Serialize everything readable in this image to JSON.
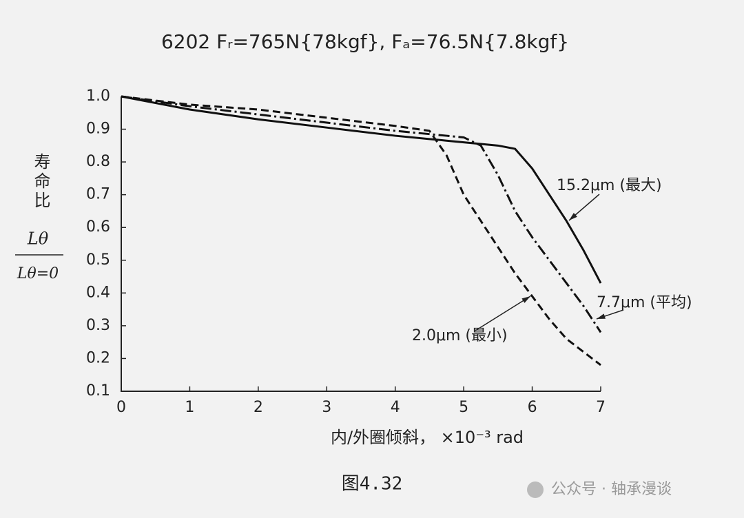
{
  "chart_data": {
    "type": "line",
    "title": "6202  Fᵣ=765N{78kgf}, Fₐ=76.5N{7.8kgf}",
    "y_label": "寿命比",
    "y_label_numerator": "Lθ",
    "y_label_denominator": "Lθ=0",
    "x_label": "内/外圈倾斜， ×10⁻³ rad",
    "caption": "图4.32",
    "watermark": "公众号 · 轴承漫谈",
    "x": [
      0,
      1,
      2,
      3,
      4,
      4.5,
      4.75,
      5,
      5.25,
      5.5,
      5.75,
      6,
      6.25,
      6.5,
      6.75,
      7
    ],
    "series": [
      {
        "name": "15.2μm (最大)",
        "color": "#111111",
        "dash": "solid",
        "values": [
          1.0,
          0.96,
          0.93,
          0.905,
          0.88,
          0.87,
          0.865,
          0.86,
          0.855,
          0.85,
          0.84,
          0.78,
          0.7,
          0.62,
          0.53,
          0.43
        ]
      },
      {
        "name": "7.7μm (平均)",
        "color": "#111111",
        "dash": "dashdot",
        "values": [
          1.0,
          0.97,
          0.945,
          0.92,
          0.895,
          0.885,
          0.88,
          0.875,
          0.85,
          0.76,
          0.65,
          0.57,
          0.5,
          0.43,
          0.36,
          0.28
        ]
      },
      {
        "name": "2.0μm (最小)",
        "color": "#111111",
        "dash": "dashed",
        "values": [
          1.0,
          0.975,
          0.96,
          0.935,
          0.91,
          0.895,
          0.82,
          0.7,
          0.62,
          0.54,
          0.46,
          0.39,
          0.32,
          0.26,
          0.22,
          0.18
        ]
      }
    ],
    "xlim": [
      0,
      7
    ],
    "xticks": [
      0,
      1,
      2,
      3,
      4,
      5,
      6,
      7
    ],
    "ylim": [
      0.1,
      1.0
    ],
    "yticks": [
      {
        "value": 0.1,
        "label": "0.1"
      },
      {
        "value": 0.2,
        "label": "0.2"
      },
      {
        "value": 0.3,
        "label": "0.3"
      },
      {
        "value": 0.4,
        "label": "0.4"
      },
      {
        "value": 0.5,
        "label": "0.5"
      },
      {
        "value": 0.6,
        "label": "0.6"
      },
      {
        "value": 0.7,
        "label": "0.7"
      },
      {
        "value": 0.8,
        "label": "0.8"
      },
      {
        "value": 0.9,
        "label": "0.9"
      },
      {
        "value": 1.0,
        "label": "1.0"
      }
    ],
    "grid": false
  }
}
